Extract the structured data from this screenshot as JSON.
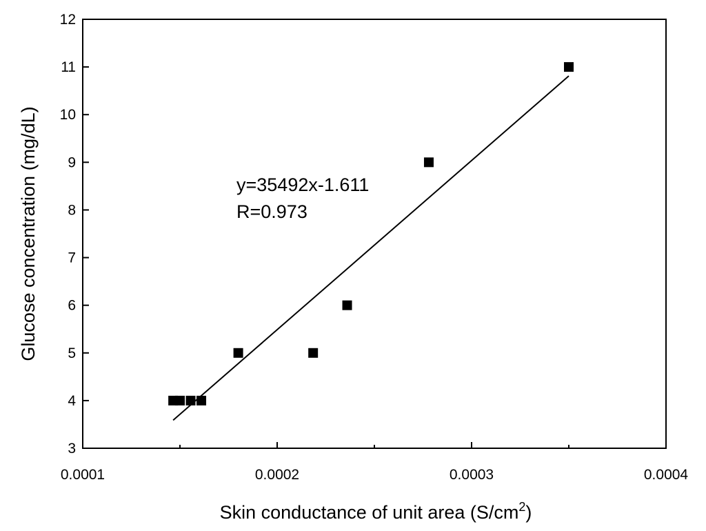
{
  "chart_data": {
    "type": "scatter",
    "xlabel": "Skin conductance of unit area (S/cm",
    "xlabel_superscript": "2",
    "xlabel_suffix": ")",
    "ylabel": "Glucose concentration (mg/dL)",
    "xlim": [
      0.0001,
      0.0004
    ],
    "ylim": [
      3,
      12
    ],
    "x_ticks": [
      "0.0001",
      "0.0002",
      "0.0003",
      "0.0004"
    ],
    "x_tick_values": [
      0.0001,
      0.0002,
      0.0003,
      0.0004
    ],
    "y_ticks": [
      "3",
      "4",
      "5",
      "6",
      "7",
      "8",
      "9",
      "10",
      "11",
      "12"
    ],
    "y_tick_values": [
      3,
      4,
      5,
      6,
      7,
      8,
      9,
      10,
      11,
      12
    ],
    "grid": false,
    "legend": "none",
    "points": [
      {
        "x": 0.0001465,
        "y": 4
      },
      {
        "x": 0.00015,
        "y": 4
      },
      {
        "x": 0.0001555,
        "y": 4
      },
      {
        "x": 0.000161,
        "y": 4
      },
      {
        "x": 0.00018,
        "y": 5
      },
      {
        "x": 0.0002185,
        "y": 5
      },
      {
        "x": 0.000236,
        "y": 6
      },
      {
        "x": 0.000278,
        "y": 9
      },
      {
        "x": 0.00035,
        "y": 11
      }
    ],
    "fit_line": {
      "slope": 35492,
      "intercept": -1.611,
      "x_range": [
        0.0001465,
        0.00035
      ]
    },
    "annotations": [
      "y=35492x-1.611",
      "R=0.973"
    ],
    "marker_color": "#000000"
  }
}
